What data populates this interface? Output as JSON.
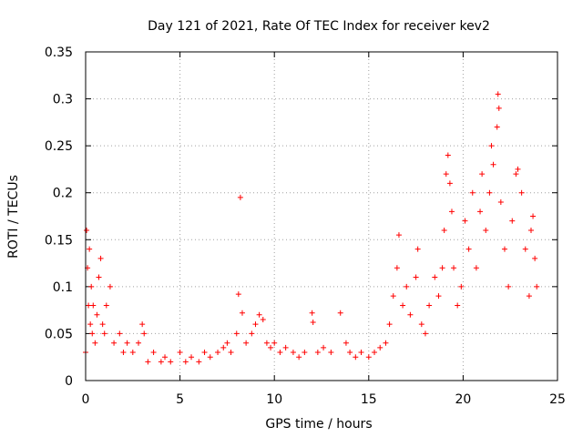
{
  "chart_data": {
    "type": "scatter",
    "title": "Day 121 of 2021, Rate Of TEC Index for receiver kev2",
    "xlabel": "GPS time / hours",
    "ylabel": "ROTI / TECUs",
    "xlim": [
      0,
      25
    ],
    "ylim": [
      0,
      0.35
    ],
    "x_ticks": [
      0,
      5,
      10,
      15,
      20,
      25
    ],
    "x_tick_labels": [
      "0",
      "5",
      "10",
      "15",
      "20",
      "25"
    ],
    "y_ticks": [
      0,
      0.05,
      0.1,
      0.15,
      0.2,
      0.25,
      0.3,
      0.35
    ],
    "y_tick_labels": [
      "0",
      "0.05",
      "0.1",
      "0.15",
      "0.2",
      "0.25",
      "0.3",
      "0.35"
    ],
    "grid": true,
    "marker": "plus",
    "marker_color": "#ff0000",
    "series": [
      {
        "points": [
          [
            0.0,
            0.03
          ],
          [
            0.05,
            0.16
          ],
          [
            0.1,
            0.12
          ],
          [
            0.15,
            0.08
          ],
          [
            0.2,
            0.14
          ],
          [
            0.25,
            0.06
          ],
          [
            0.3,
            0.1
          ],
          [
            0.35,
            0.05
          ],
          [
            0.4,
            0.08
          ],
          [
            0.5,
            0.04
          ],
          [
            0.6,
            0.07
          ],
          [
            0.7,
            0.11
          ],
          [
            0.8,
            0.13
          ],
          [
            0.9,
            0.06
          ],
          [
            1.0,
            0.05
          ],
          [
            1.1,
            0.08
          ],
          [
            1.3,
            0.1
          ],
          [
            1.5,
            0.04
          ],
          [
            1.8,
            0.05
          ],
          [
            2.0,
            0.03
          ],
          [
            2.2,
            0.04
          ],
          [
            2.5,
            0.03
          ],
          [
            2.8,
            0.04
          ],
          [
            3.0,
            0.06
          ],
          [
            3.1,
            0.05
          ],
          [
            3.3,
            0.02
          ],
          [
            3.6,
            0.03
          ],
          [
            4.0,
            0.02
          ],
          [
            4.2,
            0.025
          ],
          [
            4.5,
            0.02
          ],
          [
            5.0,
            0.03
          ],
          [
            5.3,
            0.02
          ],
          [
            5.6,
            0.025
          ],
          [
            6.0,
            0.02
          ],
          [
            6.3,
            0.03
          ],
          [
            6.6,
            0.025
          ],
          [
            7.0,
            0.03
          ],
          [
            7.3,
            0.035
          ],
          [
            7.5,
            0.04
          ],
          [
            7.7,
            0.03
          ],
          [
            8.0,
            0.05
          ],
          [
            8.1,
            0.092
          ],
          [
            8.2,
            0.195
          ],
          [
            8.3,
            0.072
          ],
          [
            8.5,
            0.04
          ],
          [
            8.8,
            0.05
          ],
          [
            9.0,
            0.06
          ],
          [
            9.2,
            0.07
          ],
          [
            9.4,
            0.065
          ],
          [
            9.6,
            0.04
          ],
          [
            9.8,
            0.035
          ],
          [
            10.0,
            0.04
          ],
          [
            10.3,
            0.03
          ],
          [
            10.6,
            0.035
          ],
          [
            11.0,
            0.03
          ],
          [
            11.3,
            0.025
          ],
          [
            11.6,
            0.03
          ],
          [
            12.0,
            0.072
          ],
          [
            12.05,
            0.062
          ],
          [
            12.3,
            0.03
          ],
          [
            12.6,
            0.035
          ],
          [
            13.0,
            0.03
          ],
          [
            13.5,
            0.072
          ],
          [
            13.8,
            0.04
          ],
          [
            14.0,
            0.03
          ],
          [
            14.3,
            0.025
          ],
          [
            14.6,
            0.03
          ],
          [
            15.0,
            0.025
          ],
          [
            15.3,
            0.03
          ],
          [
            15.6,
            0.035
          ],
          [
            15.9,
            0.04
          ],
          [
            16.1,
            0.06
          ],
          [
            16.3,
            0.09
          ],
          [
            16.5,
            0.12
          ],
          [
            16.6,
            0.155
          ],
          [
            16.8,
            0.08
          ],
          [
            17.0,
            0.1
          ],
          [
            17.2,
            0.07
          ],
          [
            17.5,
            0.11
          ],
          [
            17.6,
            0.14
          ],
          [
            17.8,
            0.06
          ],
          [
            18.0,
            0.05
          ],
          [
            18.2,
            0.08
          ],
          [
            18.5,
            0.11
          ],
          [
            18.7,
            0.09
          ],
          [
            18.9,
            0.12
          ],
          [
            19.0,
            0.16
          ],
          [
            19.1,
            0.22
          ],
          [
            19.2,
            0.24
          ],
          [
            19.3,
            0.21
          ],
          [
            19.4,
            0.18
          ],
          [
            19.5,
            0.12
          ],
          [
            19.7,
            0.08
          ],
          [
            19.9,
            0.1
          ],
          [
            20.1,
            0.17
          ],
          [
            20.3,
            0.14
          ],
          [
            20.5,
            0.2
          ],
          [
            20.7,
            0.12
          ],
          [
            20.9,
            0.18
          ],
          [
            21.0,
            0.22
          ],
          [
            21.2,
            0.16
          ],
          [
            21.4,
            0.2
          ],
          [
            21.5,
            0.25
          ],
          [
            21.6,
            0.23
          ],
          [
            21.8,
            0.27
          ],
          [
            21.85,
            0.305
          ],
          [
            21.9,
            0.29
          ],
          [
            22.0,
            0.19
          ],
          [
            22.2,
            0.14
          ],
          [
            22.4,
            0.1
          ],
          [
            22.6,
            0.17
          ],
          [
            22.8,
            0.22
          ],
          [
            22.9,
            0.225
          ],
          [
            23.1,
            0.2
          ],
          [
            23.3,
            0.14
          ],
          [
            23.5,
            0.09
          ],
          [
            23.6,
            0.16
          ],
          [
            23.7,
            0.175
          ],
          [
            23.8,
            0.13
          ],
          [
            23.9,
            0.1
          ]
        ]
      }
    ]
  }
}
